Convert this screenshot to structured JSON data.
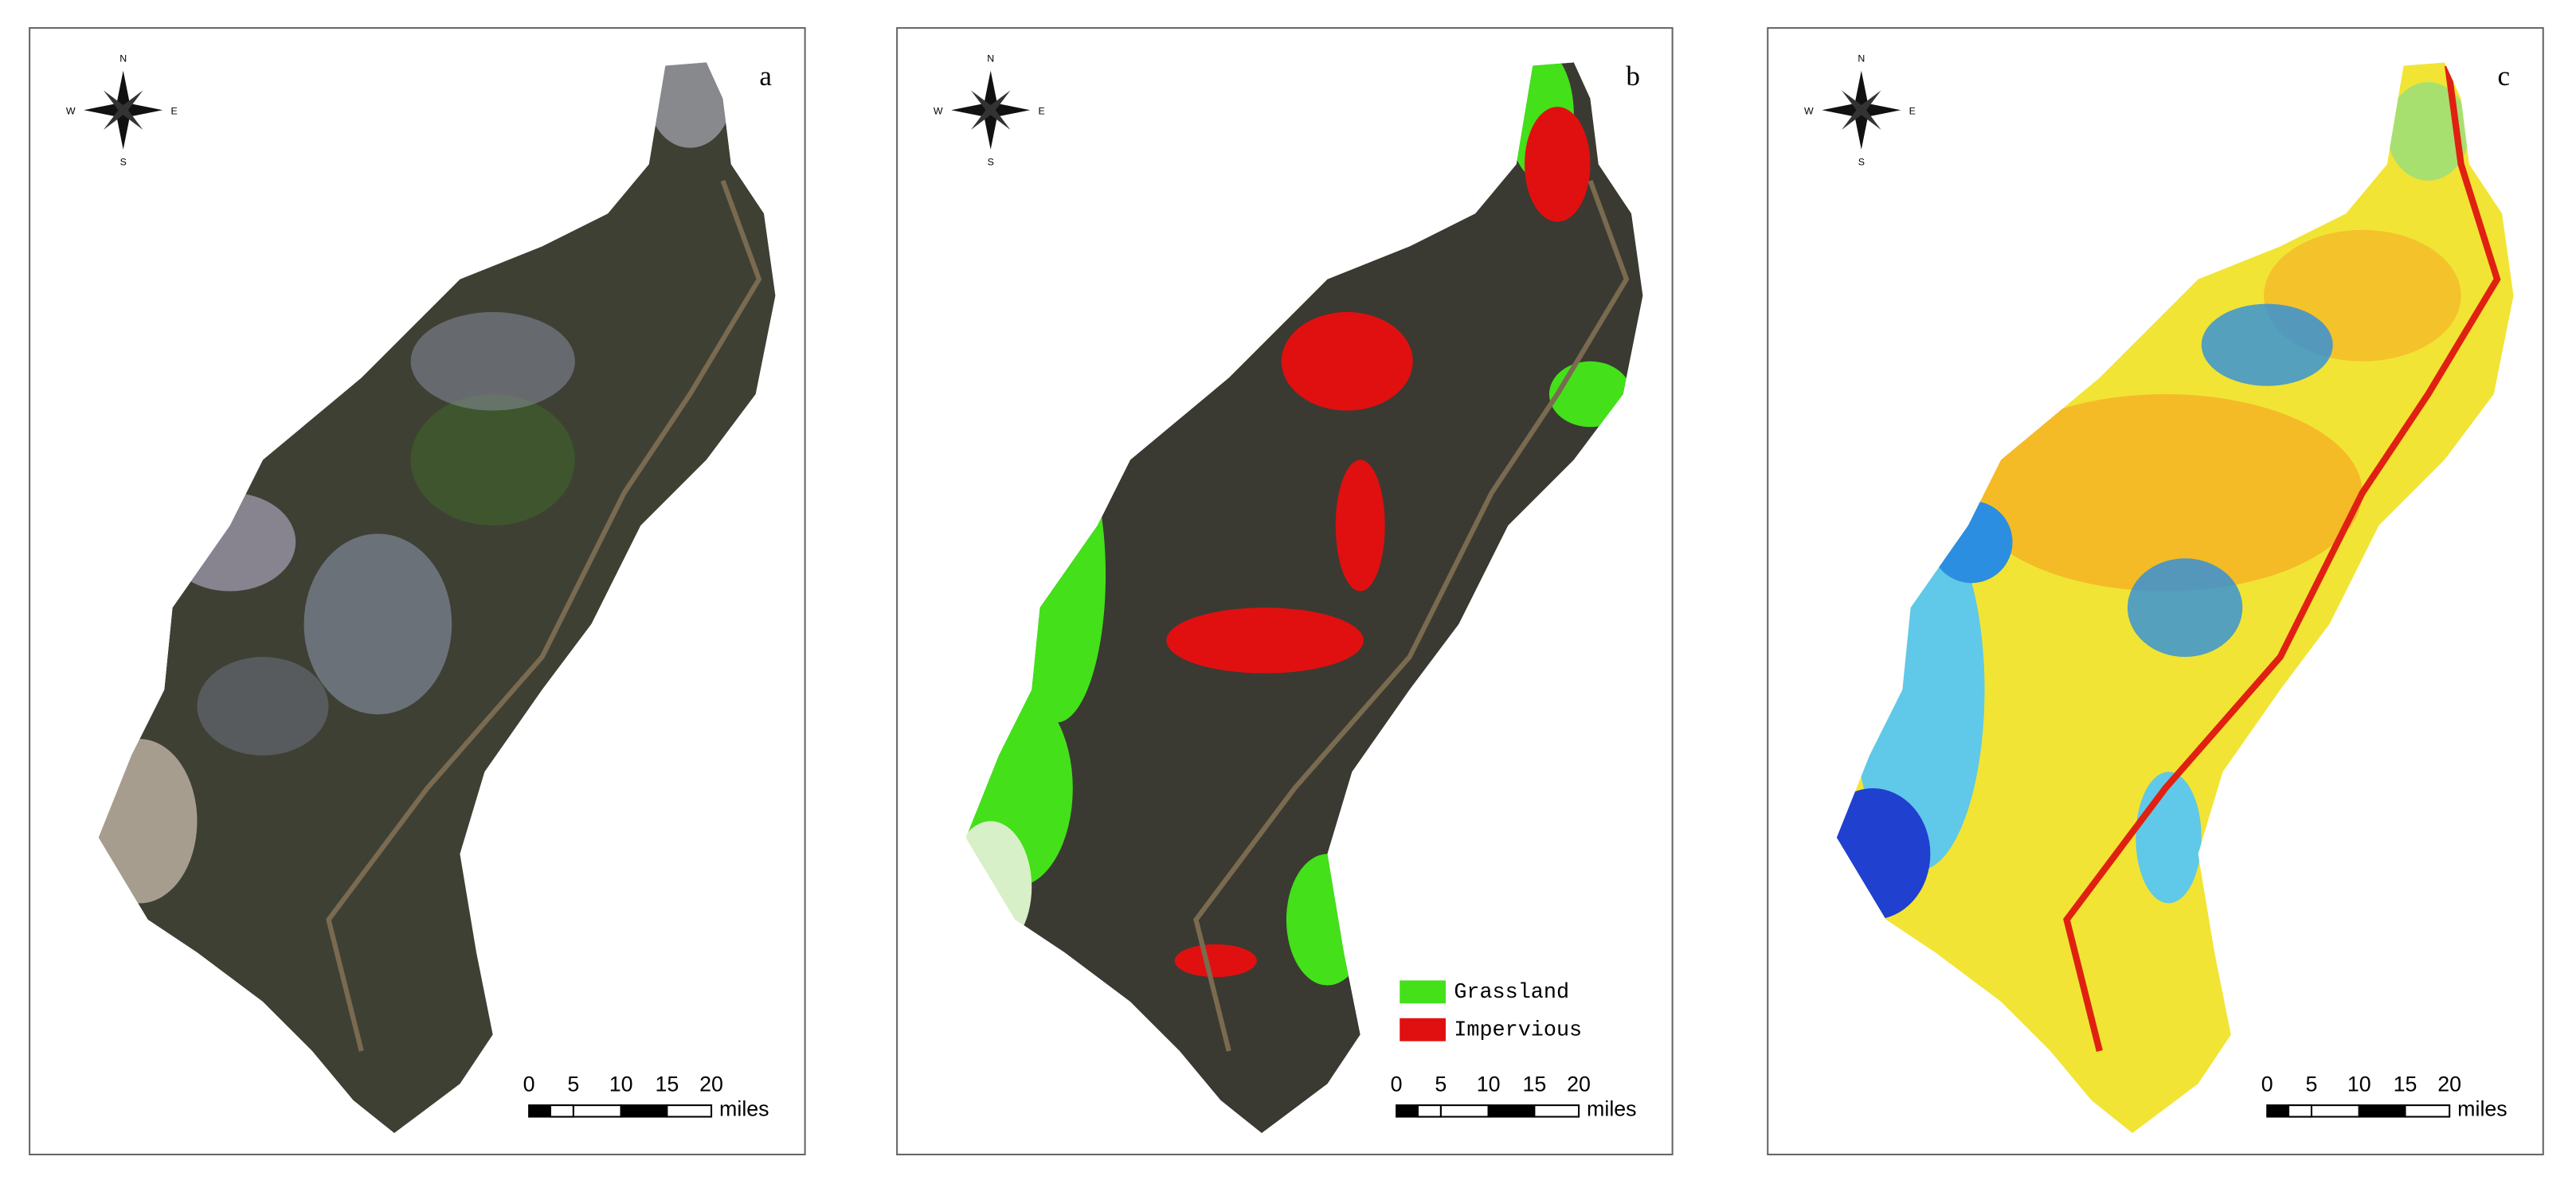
{
  "panels": [
    {
      "label": "a",
      "compass": {
        "n": "N",
        "s": "S",
        "w": "W",
        "e": "E"
      },
      "scale_bar": {
        "ticks": [
          "0",
          "5",
          "10",
          "15",
          "20"
        ],
        "unit": "miles"
      }
    },
    {
      "label": "b",
      "compass": {
        "n": "N",
        "s": "S",
        "w": "W",
        "e": "E"
      },
      "scale_bar": {
        "ticks": [
          "0",
          "5",
          "10",
          "15",
          "20"
        ],
        "unit": "miles"
      },
      "legend": [
        {
          "label": "Grassland",
          "color": "#44e01a"
        },
        {
          "label": "Impervious",
          "color": "#e01010"
        }
      ]
    },
    {
      "label": "c",
      "compass": {
        "n": "N",
        "s": "S",
        "w": "W",
        "e": "E"
      },
      "scale_bar": {
        "ticks": [
          "0",
          "5",
          "10",
          "15",
          "20"
        ],
        "unit": "miles"
      }
    }
  ]
}
